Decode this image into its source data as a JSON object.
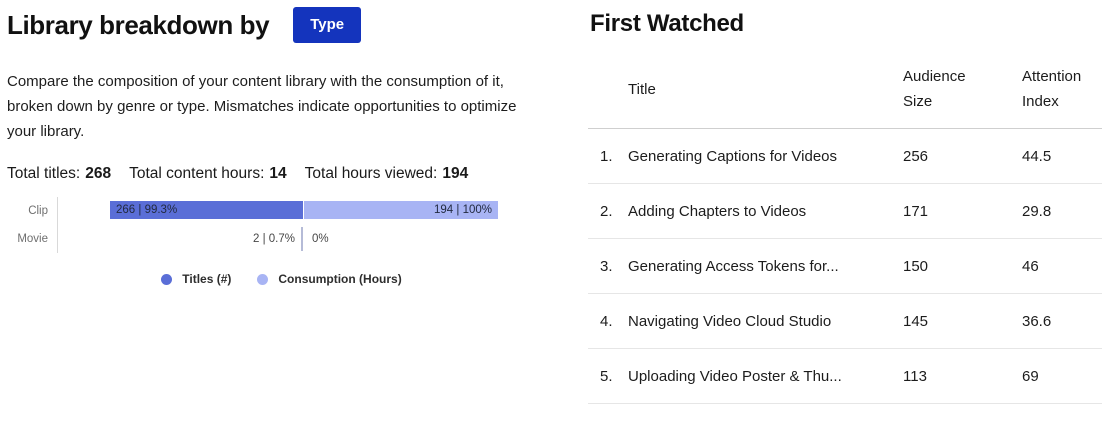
{
  "colors": {
    "accent_button": "#1434bd",
    "titles_series": "#5a6ed7",
    "consumption_series": "#a8b4f4"
  },
  "left_panel": {
    "title": "Library breakdown by",
    "dimension_button": "Type",
    "description": "Compare the composition of your content library with the consumption of it, broken down by genre or type. Mismatches indicate opportunities to optimize your library.",
    "totals": [
      {
        "label": "Total titles:",
        "value": "268"
      },
      {
        "label": "Total content hours:",
        "value": "14"
      },
      {
        "label": "Total hours viewed:",
        "value": "194"
      }
    ],
    "chart_data": {
      "type": "bar",
      "orientation": "horizontal-diverging",
      "categories": [
        "Clip",
        "Movie"
      ],
      "series": [
        {
          "name": "Titles (#)",
          "color": "#5a6ed7",
          "values": [
            266,
            2
          ],
          "percents": [
            99.3,
            0.7
          ],
          "labels": [
            "266 | 99.3%",
            "2 | 0.7%"
          ]
        },
        {
          "name": "Consumption (Hours)",
          "color": "#a8b4f4",
          "values": [
            194,
            0
          ],
          "percents": [
            100,
            0
          ],
          "labels": [
            "194 | 100%",
            "0%"
          ]
        }
      ],
      "legend": [
        "Titles (#)",
        "Consumption (Hours)"
      ],
      "legend_position": "bottom-center",
      "grid": false
    }
  },
  "right_panel": {
    "title": "First Watched",
    "table": {
      "columns": [
        "Title",
        "Audience Size",
        "Attention Index"
      ],
      "rows": [
        {
          "rank": "1.",
          "title": "Generating Captions for Videos",
          "audience_size": "256",
          "attention_index": "44.5"
        },
        {
          "rank": "2.",
          "title": "Adding Chapters to Videos",
          "audience_size": "171",
          "attention_index": "29.8"
        },
        {
          "rank": "3.",
          "title": "Generating Access Tokens for...",
          "audience_size": "150",
          "attention_index": "46"
        },
        {
          "rank": "4.",
          "title": "Navigating Video Cloud Studio",
          "audience_size": "145",
          "attention_index": "36.6"
        },
        {
          "rank": "5.",
          "title": "Uploading Video Poster & Thu...",
          "audience_size": "113",
          "attention_index": "69"
        }
      ]
    }
  }
}
